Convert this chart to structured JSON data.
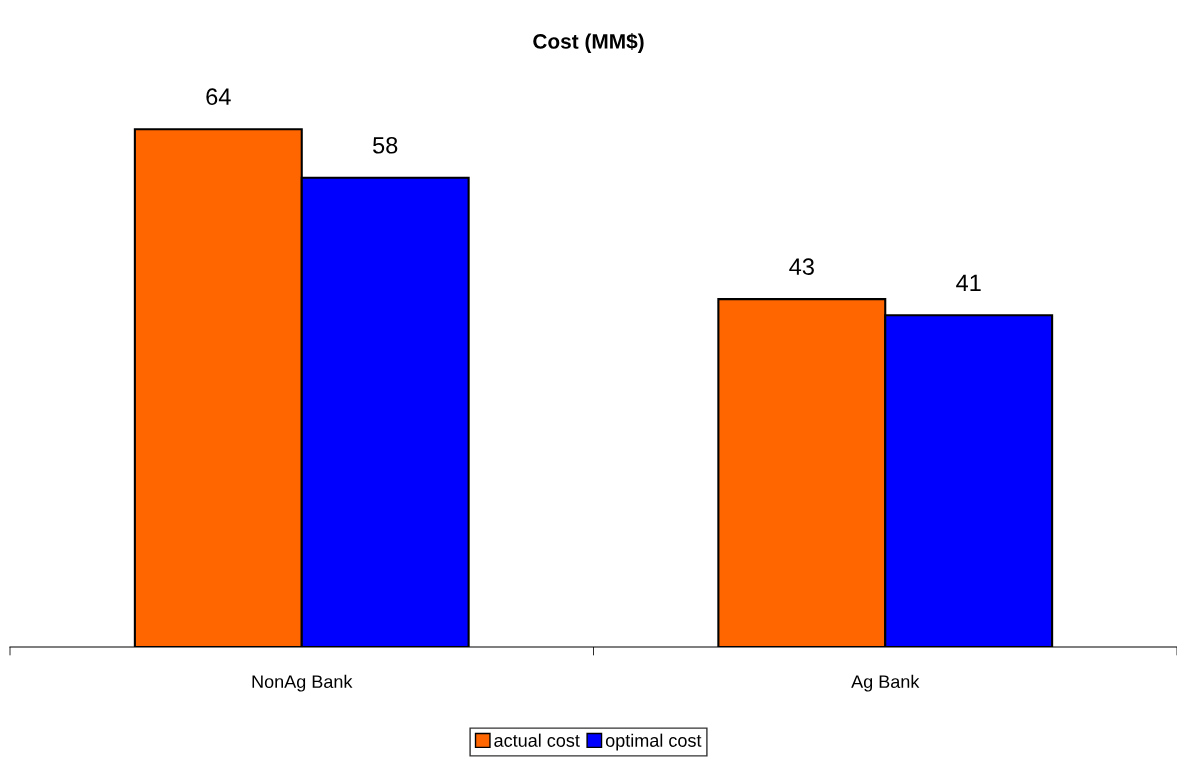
{
  "chart_data": {
    "type": "bar",
    "title": "Cost (MM$)",
    "categories": [
      "NonAg Bank",
      "Ag Bank"
    ],
    "series": [
      {
        "name": "actual cost",
        "color": "#ff6600",
        "values": [
          64,
          43
        ]
      },
      {
        "name": "optimal cost",
        "color": "#0000ff",
        "values": [
          58,
          41
        ]
      }
    ],
    "data_labels": true,
    "legend": "bottom",
    "grid": false,
    "tick_labels": "x"
  }
}
